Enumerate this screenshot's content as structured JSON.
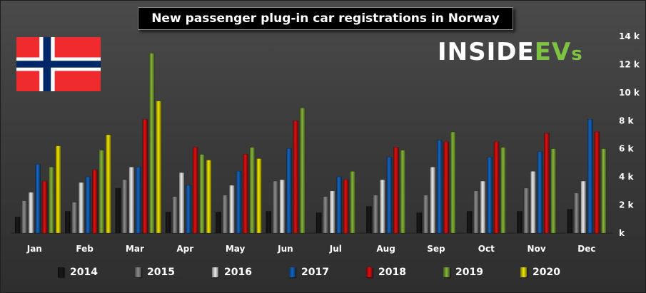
{
  "title": "New passenger plug-in car registrations in Norway",
  "logo": {
    "part1": "INSIDE",
    "part2": "EV",
    "part3": "s"
  },
  "colors": {
    "2014": "#1a1a1a",
    "2015": "#8c8c8c",
    "2016": "#ececec",
    "2017": "#1565c0",
    "2018": "#e01010",
    "2019": "#86b43a",
    "2020": "#f2e600"
  },
  "chart_data": {
    "type": "bar",
    "title": "New passenger plug-in car registrations in Norway",
    "categories": [
      "Jan",
      "Feb",
      "Mar",
      "Apr",
      "May",
      "Jun",
      "Jul",
      "Aug",
      "Sep",
      "Oct",
      "Nov",
      "Dec"
    ],
    "ylim": [
      0,
      14000
    ],
    "yticks": [
      0,
      2000,
      4000,
      6000,
      8000,
      10000,
      12000,
      14000
    ],
    "ytick_labels": [
      "k",
      "2 k",
      "4 k",
      "6 k",
      "8 k",
      "10 k",
      "12 k",
      "14 k"
    ],
    "yaxis_position": "right",
    "legend_position": "bottom",
    "grid": false,
    "series": [
      {
        "name": "2014",
        "values": [
          1150,
          1550,
          3200,
          1500,
          1500,
          1550,
          1450,
          1900,
          1450,
          1550,
          1550,
          1700
        ]
      },
      {
        "name": "2015",
        "values": [
          2300,
          2200,
          3800,
          2600,
          2700,
          3700,
          2600,
          2700,
          2700,
          3000,
          3200,
          2850
        ]
      },
      {
        "name": "2016",
        "values": [
          2900,
          3600,
          4700,
          4300,
          3400,
          3800,
          3000,
          3800,
          4700,
          3700,
          4400,
          3700
        ]
      },
      {
        "name": "2017",
        "values": [
          4900,
          4000,
          4700,
          3400,
          4400,
          6000,
          4000,
          5400,
          6600,
          5400,
          5800,
          8100
        ]
      },
      {
        "name": "2018",
        "values": [
          3700,
          4500,
          8100,
          6100,
          5600,
          8000,
          3800,
          6100,
          6500,
          6500,
          7100,
          7200
        ]
      },
      {
        "name": "2019",
        "values": [
          4700,
          5900,
          12800,
          5600,
          6100,
          8900,
          4400,
          5900,
          7200,
          6100,
          6000,
          6000
        ]
      },
      {
        "name": "2020",
        "values": [
          6200,
          7000,
          9400,
          5200,
          5300,
          null,
          null,
          null,
          null,
          null,
          null,
          null
        ]
      }
    ]
  }
}
